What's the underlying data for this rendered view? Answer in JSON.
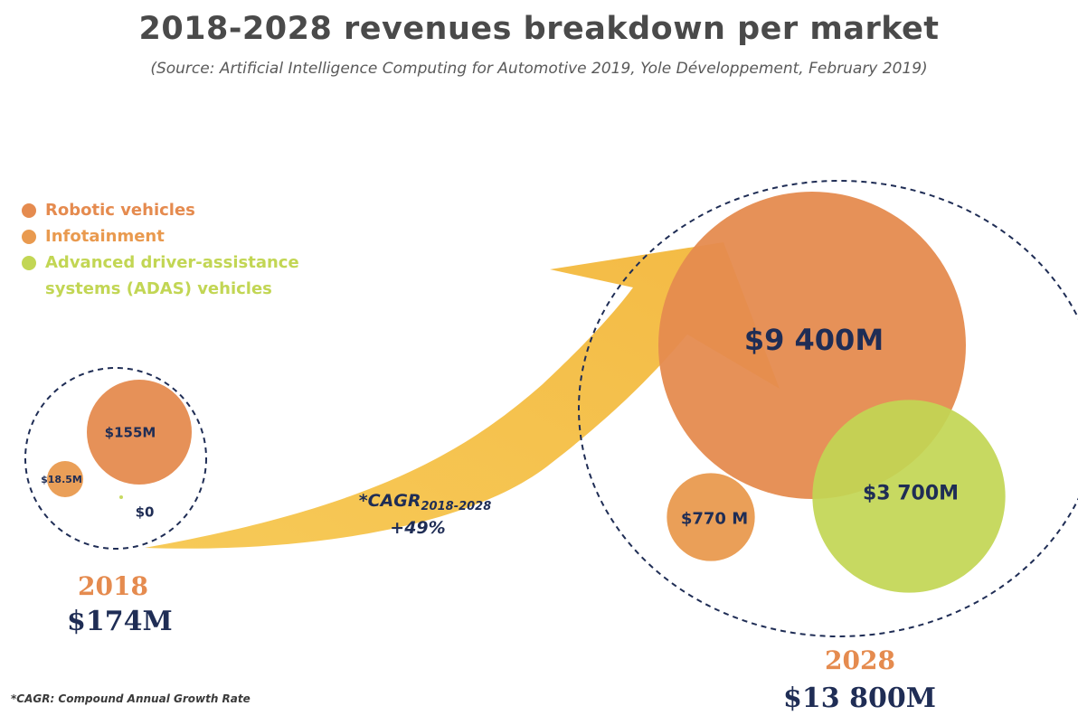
{
  "title": "2018-2028 revenues breakdown per market",
  "subtitle": "(Source: Artificial Intelligence Computing for Automotive 2019, Yole Développement, February 2019)",
  "legend": [
    {
      "label": "Robotic vehicles",
      "color": "#e58b4f"
    },
    {
      "label": "Infotainment",
      "color": "#e99a4f"
    },
    {
      "label": "Advanced driver-assistance systems (ADAS) vehicles",
      "color": "#c2d654"
    }
  ],
  "cagr": {
    "label": "*CAGR",
    "subscript": "2018-2028",
    "value": "+49%"
  },
  "footnote": "*CAGR: Compound Annual Growth Rate",
  "chart_data": {
    "type": "bubble",
    "title": "2018-2028 revenues breakdown per market",
    "unit": "$M",
    "series": [
      {
        "name": "Robotic vehicles",
        "values": [
          155,
          9400
        ],
        "labels": [
          "$155M",
          "$9 400M"
        ]
      },
      {
        "name": "Infotainment",
        "values": [
          18.5,
          770
        ],
        "labels": [
          "$18.5M",
          "$770 M"
        ]
      },
      {
        "name": "Advanced driver-assistance systems (ADAS) vehicles",
        "values": [
          0,
          3700
        ],
        "labels": [
          "$0",
          "$3 700M"
        ]
      }
    ],
    "years": [
      {
        "year": "2018",
        "total": "$174M",
        "total_value": 174
      },
      {
        "year": "2028",
        "total": "$13 800M",
        "total_value": 13800
      }
    ]
  }
}
